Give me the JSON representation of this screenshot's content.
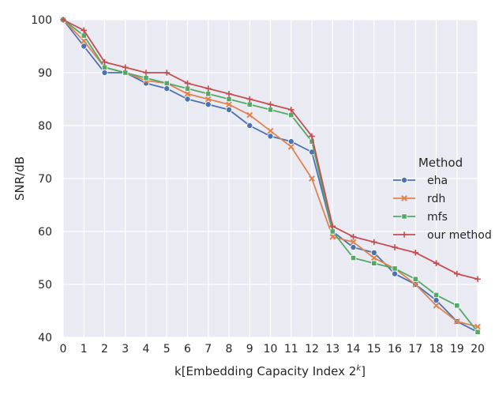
{
  "chart_data": {
    "type": "line",
    "xlabel": "k[Embedding Capacity Index 2",
    "xlabel_sup": "k",
    "xlabel_end": "]",
    "ylabel": "SNR/dB",
    "x": [
      0,
      1,
      2,
      3,
      4,
      5,
      6,
      7,
      8,
      9,
      10,
      11,
      12,
      13,
      14,
      15,
      16,
      17,
      18,
      19,
      20
    ],
    "x_ticks": [
      "0",
      "1",
      "2",
      "3",
      "4",
      "5",
      "6",
      "7",
      "8",
      "9",
      "10",
      "11",
      "12",
      "13",
      "14",
      "15",
      "16",
      "17",
      "18",
      "19",
      "20"
    ],
    "xlim": [
      0,
      20
    ],
    "ylim": [
      40,
      100
    ],
    "y_ticks": [
      "40",
      "50",
      "60",
      "70",
      "80",
      "90",
      "100"
    ],
    "grid": true,
    "legend_title": "Method",
    "legend_position": "center-right",
    "series": [
      {
        "name": "eha",
        "color": "#4c72b0",
        "marker": "circle",
        "values": [
          100,
          95,
          90,
          90,
          88,
          87,
          85,
          84,
          83,
          80,
          78,
          77,
          75,
          60,
          57,
          56,
          52,
          50,
          47,
          43,
          41
        ]
      },
      {
        "name": "rdh",
        "color": "#dd8452",
        "marker": "x",
        "values": [
          100,
          96,
          91,
          90,
          88.5,
          88,
          86,
          85,
          84,
          82,
          79,
          76,
          70,
          59,
          58,
          55,
          53,
          50,
          46,
          43,
          42
        ]
      },
      {
        "name": "mfs",
        "color": "#55a868",
        "marker": "square",
        "values": [
          100,
          97,
          91,
          90,
          89,
          88,
          87,
          86,
          85,
          84,
          83,
          82,
          77,
          60,
          55,
          54,
          53,
          51,
          48,
          46,
          41
        ]
      },
      {
        "name": "our method",
        "color": "#c44e52",
        "marker": "plus",
        "values": [
          100,
          98,
          92,
          91,
          90,
          90,
          88,
          87,
          86,
          85,
          84,
          83,
          78,
          61,
          59,
          58,
          57,
          56,
          54,
          52,
          51
        ]
      }
    ]
  }
}
